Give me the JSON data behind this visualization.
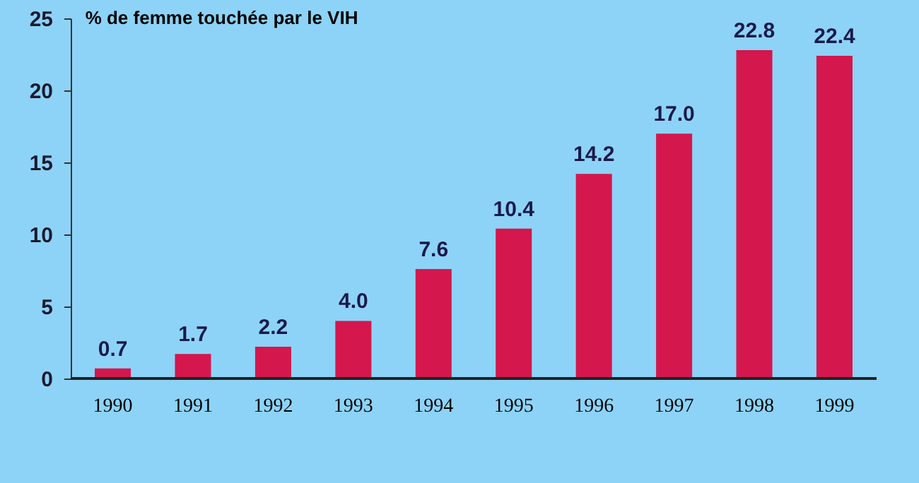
{
  "chart_data": {
    "type": "bar",
    "title": "% de femme touchée par le VIH",
    "categories": [
      "1990",
      "1991",
      "1992",
      "1993",
      "1994",
      "1995",
      "1996",
      "1997",
      "1998",
      "1999"
    ],
    "values": [
      0.7,
      1.7,
      2.2,
      4.0,
      7.6,
      10.4,
      14.2,
      17.0,
      22.8,
      22.4
    ],
    "color": "#d4174c",
    "ylim": [
      0,
      25
    ],
    "yticks": [
      0,
      5,
      10,
      15,
      20,
      25
    ],
    "value_labels": [
      "0.7",
      "1.7",
      "2.2",
      "4.0",
      "7.6",
      "10.4",
      "14.2",
      "17.0",
      "22.8",
      "22.4"
    ],
    "grid": false
  }
}
